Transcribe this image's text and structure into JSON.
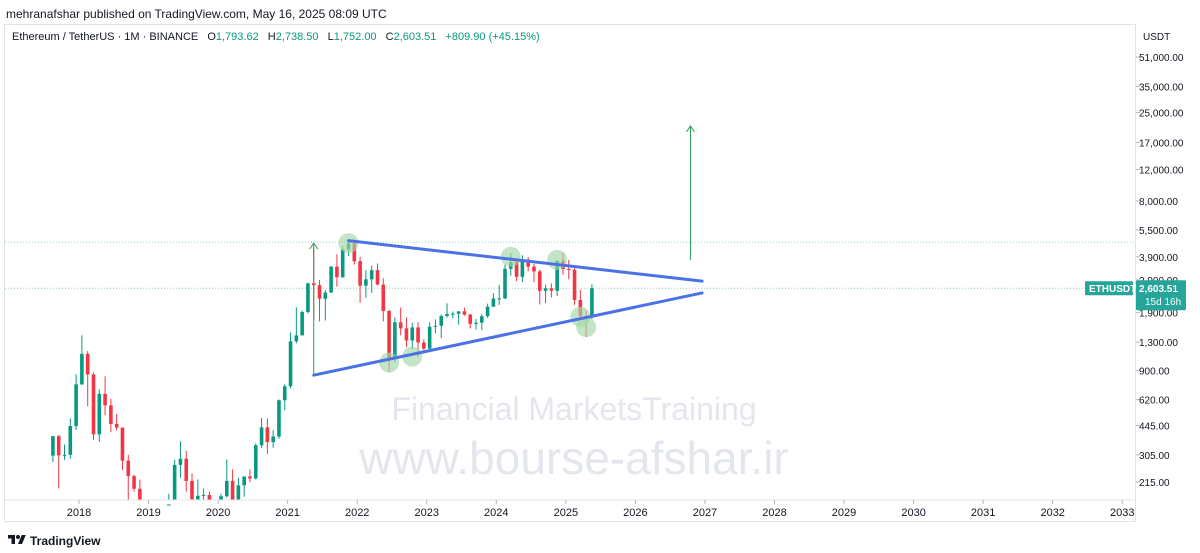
{
  "header": {
    "published_text": "mehranafshar published on TradingView.com, May 16, 2025 08:09 UTC"
  },
  "legend": {
    "symbol": "Ethereum / TetherUS · 1M · BINANCE",
    "o_label": "O",
    "o_value": "1,793.62",
    "h_label": "H",
    "h_value": "2,738.50",
    "l_label": "L",
    "l_value": "1,752.00",
    "c_label": "C",
    "c_value": "2,603.51",
    "change": "+809.90 (+45.15%)"
  },
  "footer": {
    "brand": "TradingView"
  },
  "watermark": {
    "line1": "Financial MarketsTraining",
    "line2": "www.bourse-afshar.ir"
  },
  "colors": {
    "up": "#089981",
    "down": "#f23645",
    "trendline": "#4a72e6",
    "arrow": "#2e9e58",
    "marker": "#a5d6a7",
    "accent": "#26a69a"
  },
  "chart_data": {
    "type": "candlestick",
    "symbol": "ETHUSDT",
    "timeframe": "1M",
    "y_scale": "log",
    "y_unit": "USDT",
    "yticks": [
      215,
      305,
      445,
      620,
      900,
      1300,
      1900,
      2900,
      3900,
      5500,
      8000,
      12000,
      17000,
      25000,
      35000,
      51000
    ],
    "ytick_labels": [
      "215.00",
      "305.00",
      "445.00",
      "620.00",
      "900.00",
      "1,300.00",
      "1,900.00",
      "2,900.00",
      "3,900.00",
      "5,500.00",
      "8,000.00",
      "12,000.00",
      "17,000.00",
      "25,000.00",
      "35,000.00",
      "51,000.00"
    ],
    "xticks": [
      "2018",
      "2019",
      "2020",
      "2021",
      "2022",
      "2023",
      "2024",
      "2025",
      "2026",
      "2027",
      "2028",
      "2029",
      "2030",
      "2031",
      "2032",
      "2033"
    ],
    "last_price": {
      "label": "ETHUSDT",
      "value": "2,603.51",
      "countdown": "15d 16h"
    },
    "candles": [
      [
        "2017-08",
        302,
        348,
        278,
        388
      ],
      [
        "2017-09",
        388,
        394,
        198,
        303
      ],
      [
        "2017-10",
        303,
        348,
        286,
        305
      ],
      [
        "2017-11",
        305,
        487,
        290,
        442
      ],
      [
        "2017-12",
        442,
        860,
        420,
        755
      ],
      [
        "2018-01",
        755,
        1420,
        750,
        1118
      ],
      [
        "2018-02",
        1118,
        1160,
        570,
        858
      ],
      [
        "2018-03",
        858,
        880,
        370,
        397
      ],
      [
        "2018-04",
        397,
        708,
        360,
        669
      ],
      [
        "2018-05",
        669,
        838,
        508,
        577
      ],
      [
        "2018-06",
        577,
        627,
        408,
        454
      ],
      [
        "2018-07",
        454,
        516,
        418,
        433
      ],
      [
        "2018-08",
        433,
        434,
        250,
        283
      ],
      [
        "2018-09",
        283,
        305,
        168,
        232
      ],
      [
        "2018-10",
        232,
        236,
        190,
        197
      ],
      [
        "2018-11",
        197,
        222,
        100,
        113
      ],
      [
        "2018-12",
        113,
        158,
        82,
        133
      ],
      [
        "2019-01",
        133,
        159,
        100,
        106
      ],
      [
        "2019-02",
        106,
        165,
        102,
        136
      ],
      [
        "2019-03",
        136,
        145,
        126,
        141
      ],
      [
        "2019-04",
        141,
        185,
        140,
        161
      ],
      [
        "2019-05",
        161,
        285,
        156,
        268
      ],
      [
        "2019-06",
        268,
        363,
        227,
        290
      ],
      [
        "2019-07",
        290,
        321,
        190,
        218
      ],
      [
        "2019-08",
        218,
        240,
        163,
        172
      ],
      [
        "2019-09",
        172,
        222,
        152,
        180
      ],
      [
        "2019-10",
        180,
        198,
        153,
        182
      ],
      [
        "2019-11",
        182,
        190,
        134,
        152
      ],
      [
        "2019-12",
        152,
        154,
        116,
        129
      ],
      [
        "2020-01",
        129,
        185,
        126,
        179
      ],
      [
        "2020-02",
        179,
        288,
        176,
        218
      ],
      [
        "2020-03",
        218,
        253,
        86,
        133
      ],
      [
        "2020-04",
        133,
        227,
        129,
        206
      ],
      [
        "2020-05",
        206,
        227,
        178,
        231
      ],
      [
        "2020-06",
        231,
        253,
        215,
        225
      ],
      [
        "2020-07",
        225,
        353,
        222,
        345
      ],
      [
        "2020-08",
        345,
        490,
        332,
        434
      ],
      [
        "2020-09",
        434,
        488,
        308,
        359
      ],
      [
        "2020-10",
        359,
        419,
        334,
        386
      ],
      [
        "2020-11",
        386,
        622,
        374,
        616
      ],
      [
        "2020-12",
        616,
        757,
        541,
        737
      ],
      [
        "2021-01",
        737,
        1475,
        715,
        1314
      ],
      [
        "2021-02",
        1314,
        2036,
        1280,
        1418
      ],
      [
        "2021-03",
        1418,
        1950,
        1430,
        1918
      ],
      [
        "2021-04",
        1918,
        2796,
        1880,
        2773
      ],
      [
        "2021-05",
        2773,
        4372,
        1718,
        2707
      ],
      [
        "2021-06",
        2707,
        2891,
        1700,
        2272
      ],
      [
        "2021-07",
        2272,
        2551,
        1718,
        2460
      ],
      [
        "2021-08",
        2460,
        3466,
        2457,
        3433
      ],
      [
        "2021-09",
        3433,
        4027,
        2652,
        3000
      ],
      [
        "2021-10",
        3000,
        4460,
        2970,
        4288
      ],
      [
        "2021-11",
        4288,
        4868,
        3950,
        4630
      ],
      [
        "2021-12",
        4630,
        4778,
        3524,
        3683
      ],
      [
        "2022-01",
        3683,
        3900,
        2159,
        2688
      ],
      [
        "2022-02",
        2688,
        3282,
        2300,
        2919
      ],
      [
        "2022-03",
        2919,
        3479,
        2450,
        3281
      ],
      [
        "2022-04",
        3281,
        3580,
        2700,
        2727
      ],
      [
        "2022-05",
        2727,
        2955,
        1700,
        1941
      ],
      [
        "2022-06",
        1941,
        1972,
        881,
        1067
      ],
      [
        "2022-07",
        1067,
        1785,
        1000,
        1679
      ],
      [
        "2022-08",
        1679,
        2030,
        1420,
        1553
      ],
      [
        "2022-09",
        1553,
        1790,
        1220,
        1328
      ],
      [
        "2022-10",
        1328,
        1664,
        1190,
        1572
      ],
      [
        "2022-11",
        1572,
        1680,
        1073,
        1295
      ],
      [
        "2022-12",
        1295,
        1352,
        1150,
        1196
      ],
      [
        "2023-01",
        1196,
        1680,
        1190,
        1585
      ],
      [
        "2023-02",
        1585,
        1742,
        1460,
        1605
      ],
      [
        "2023-03",
        1605,
        1857,
        1368,
        1821
      ],
      [
        "2023-04",
        1821,
        2142,
        1785,
        1868
      ],
      [
        "2023-05",
        1868,
        1928,
        1762,
        1874
      ],
      [
        "2023-06",
        1874,
        1928,
        1626,
        1934
      ],
      [
        "2023-07",
        1934,
        2029,
        1823,
        1856
      ],
      [
        "2023-08",
        1856,
        1870,
        1550,
        1645
      ],
      [
        "2023-09",
        1645,
        1750,
        1530,
        1671
      ],
      [
        "2023-10",
        1671,
        1865,
        1521,
        1815
      ],
      [
        "2023-11",
        1815,
        2134,
        1780,
        2052
      ],
      [
        "2023-12",
        2052,
        2445,
        2044,
        2281
      ],
      [
        "2024-01",
        2281,
        2717,
        2100,
        2283
      ],
      [
        "2024-02",
        2283,
        3522,
        2260,
        3340
      ],
      [
        "2024-03",
        3340,
        4093,
        3056,
        3646
      ],
      [
        "2024-04",
        3646,
        3730,
        2853,
        3014
      ],
      [
        "2024-05",
        3014,
        3977,
        2817,
        3762
      ],
      [
        "2024-06",
        3762,
        3887,
        3236,
        3437
      ],
      [
        "2024-07",
        3437,
        3563,
        2810,
        3232
      ],
      [
        "2024-08",
        3232,
        3305,
        2111,
        2514
      ],
      [
        "2024-09",
        2514,
        2728,
        2150,
        2602
      ],
      [
        "2024-10",
        2602,
        2769,
        2310,
        2518
      ],
      [
        "2024-11",
        2518,
        3735,
        2357,
        3703
      ],
      [
        "2024-12",
        3703,
        4107,
        3099,
        3332
      ],
      [
        "2025-01",
        3332,
        3745,
        2920,
        3300
      ],
      [
        "2025-02",
        3300,
        3400,
        2100,
        2237
      ],
      [
        "2025-03",
        2237,
        2550,
        1754,
        1822
      ],
      [
        "2025-04",
        1822,
        1954,
        1385,
        1793
      ],
      [
        "2025-05",
        1793,
        2738,
        1752,
        2603
      ]
    ],
    "trendlines": [
      {
        "name": "upper",
        "from": [
          "2021-11",
          4800
        ],
        "to": [
          "2026-12",
          2850
        ]
      },
      {
        "name": "lower",
        "from": [
          "2021-05",
          850
        ],
        "to": [
          "2026-12",
          2450
        ]
      }
    ],
    "arrows": [
      {
        "name": "prior-move",
        "x": "2021-05",
        "from": 850,
        "to": 4650
      },
      {
        "name": "projection",
        "x": "2026-10",
        "from": 3750,
        "to": 21000
      }
    ],
    "markers": [
      [
        "2021-11",
        4650
      ],
      [
        "2022-06",
        1000
      ],
      [
        "2022-10",
        1080
      ],
      [
        "2024-03",
        3900
      ],
      [
        "2024-11",
        3750
      ],
      [
        "2025-03",
        1800
      ],
      [
        "2025-04",
        1580
      ]
    ],
    "hlines": [
      4700,
      2603.51
    ]
  }
}
